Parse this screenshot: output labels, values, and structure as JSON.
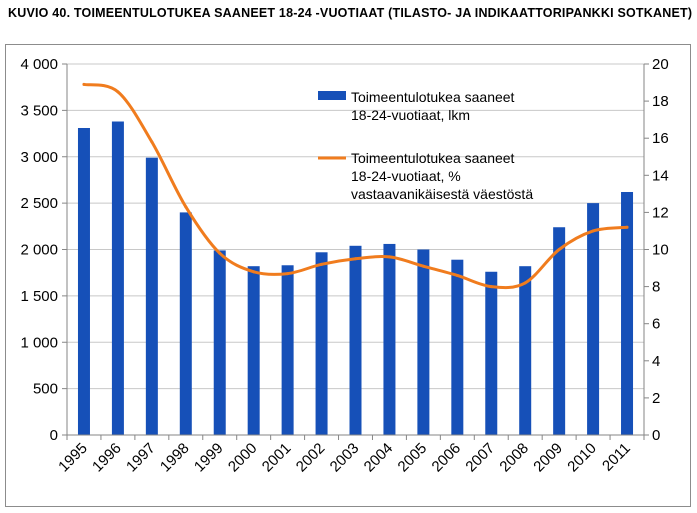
{
  "title": "KUVIO 40. TOIMEENTULOTUKEA SAANEET 18-24 -VUOTIAAT (TILASTO- JA INDIKAATTORIPANKKI SOTKANET)",
  "colors": {
    "bar": "#1650b8",
    "line": "#f07c1e",
    "grid": "#c8c8c8",
    "axis": "#868686"
  },
  "chart_data": {
    "type": "bar+line",
    "title": "KUVIO 40. TOIMEENTULOTUKEA SAANEET 18-24 -VUOTIAAT (TILASTO- JA INDIKAATTORIPANKKI SOTKANET)",
    "categories": [
      "1995",
      "1996",
      "1997",
      "1998",
      "1999",
      "2000",
      "2001",
      "2002",
      "2003",
      "2004",
      "2005",
      "2006",
      "2007",
      "2008",
      "2009",
      "2010",
      "2011"
    ],
    "series": [
      {
        "name": "Toimeentulotukea saaneet 18-24-vuotiaat, lkm",
        "legend_lines": [
          "Toimeentulotukea saaneet",
          "18-24-vuotiaat, lkm"
        ],
        "type": "bar",
        "axis": "left",
        "values": [
          3310,
          3380,
          2990,
          2400,
          1990,
          1820,
          1830,
          1970,
          2040,
          2060,
          2000,
          1890,
          1760,
          1820,
          2240,
          2500,
          2620
        ]
      },
      {
        "name": "Toimeentulotukea saaneet 18-24-vuotiaat, % vastaavanikäisestä väestöstä",
        "legend_lines": [
          "Toimeentulotukea saaneet",
          "18-24-vuotiaat, %",
          "vastaavanikäisestä väestöstä"
        ],
        "type": "line",
        "axis": "right",
        "values": [
          18.9,
          18.5,
          15.8,
          12.3,
          9.8,
          8.8,
          8.7,
          9.2,
          9.5,
          9.6,
          9.1,
          8.6,
          8.0,
          8.2,
          10.0,
          11.0,
          11.2
        ]
      }
    ],
    "y_left": {
      "min": 0,
      "max": 4000,
      "step": 500,
      "tick_labels": [
        "0",
        "500",
        "1 000",
        "1 500",
        "2 000",
        "2 500",
        "3 000",
        "3 500",
        "4 000"
      ]
    },
    "y_right": {
      "min": 0,
      "max": 20,
      "step": 2,
      "tick_labels": [
        "0",
        "2",
        "4",
        "6",
        "8",
        "10",
        "12",
        "14",
        "16",
        "18",
        "20"
      ]
    },
    "grid": true,
    "legend_position": "top-center-inside"
  }
}
